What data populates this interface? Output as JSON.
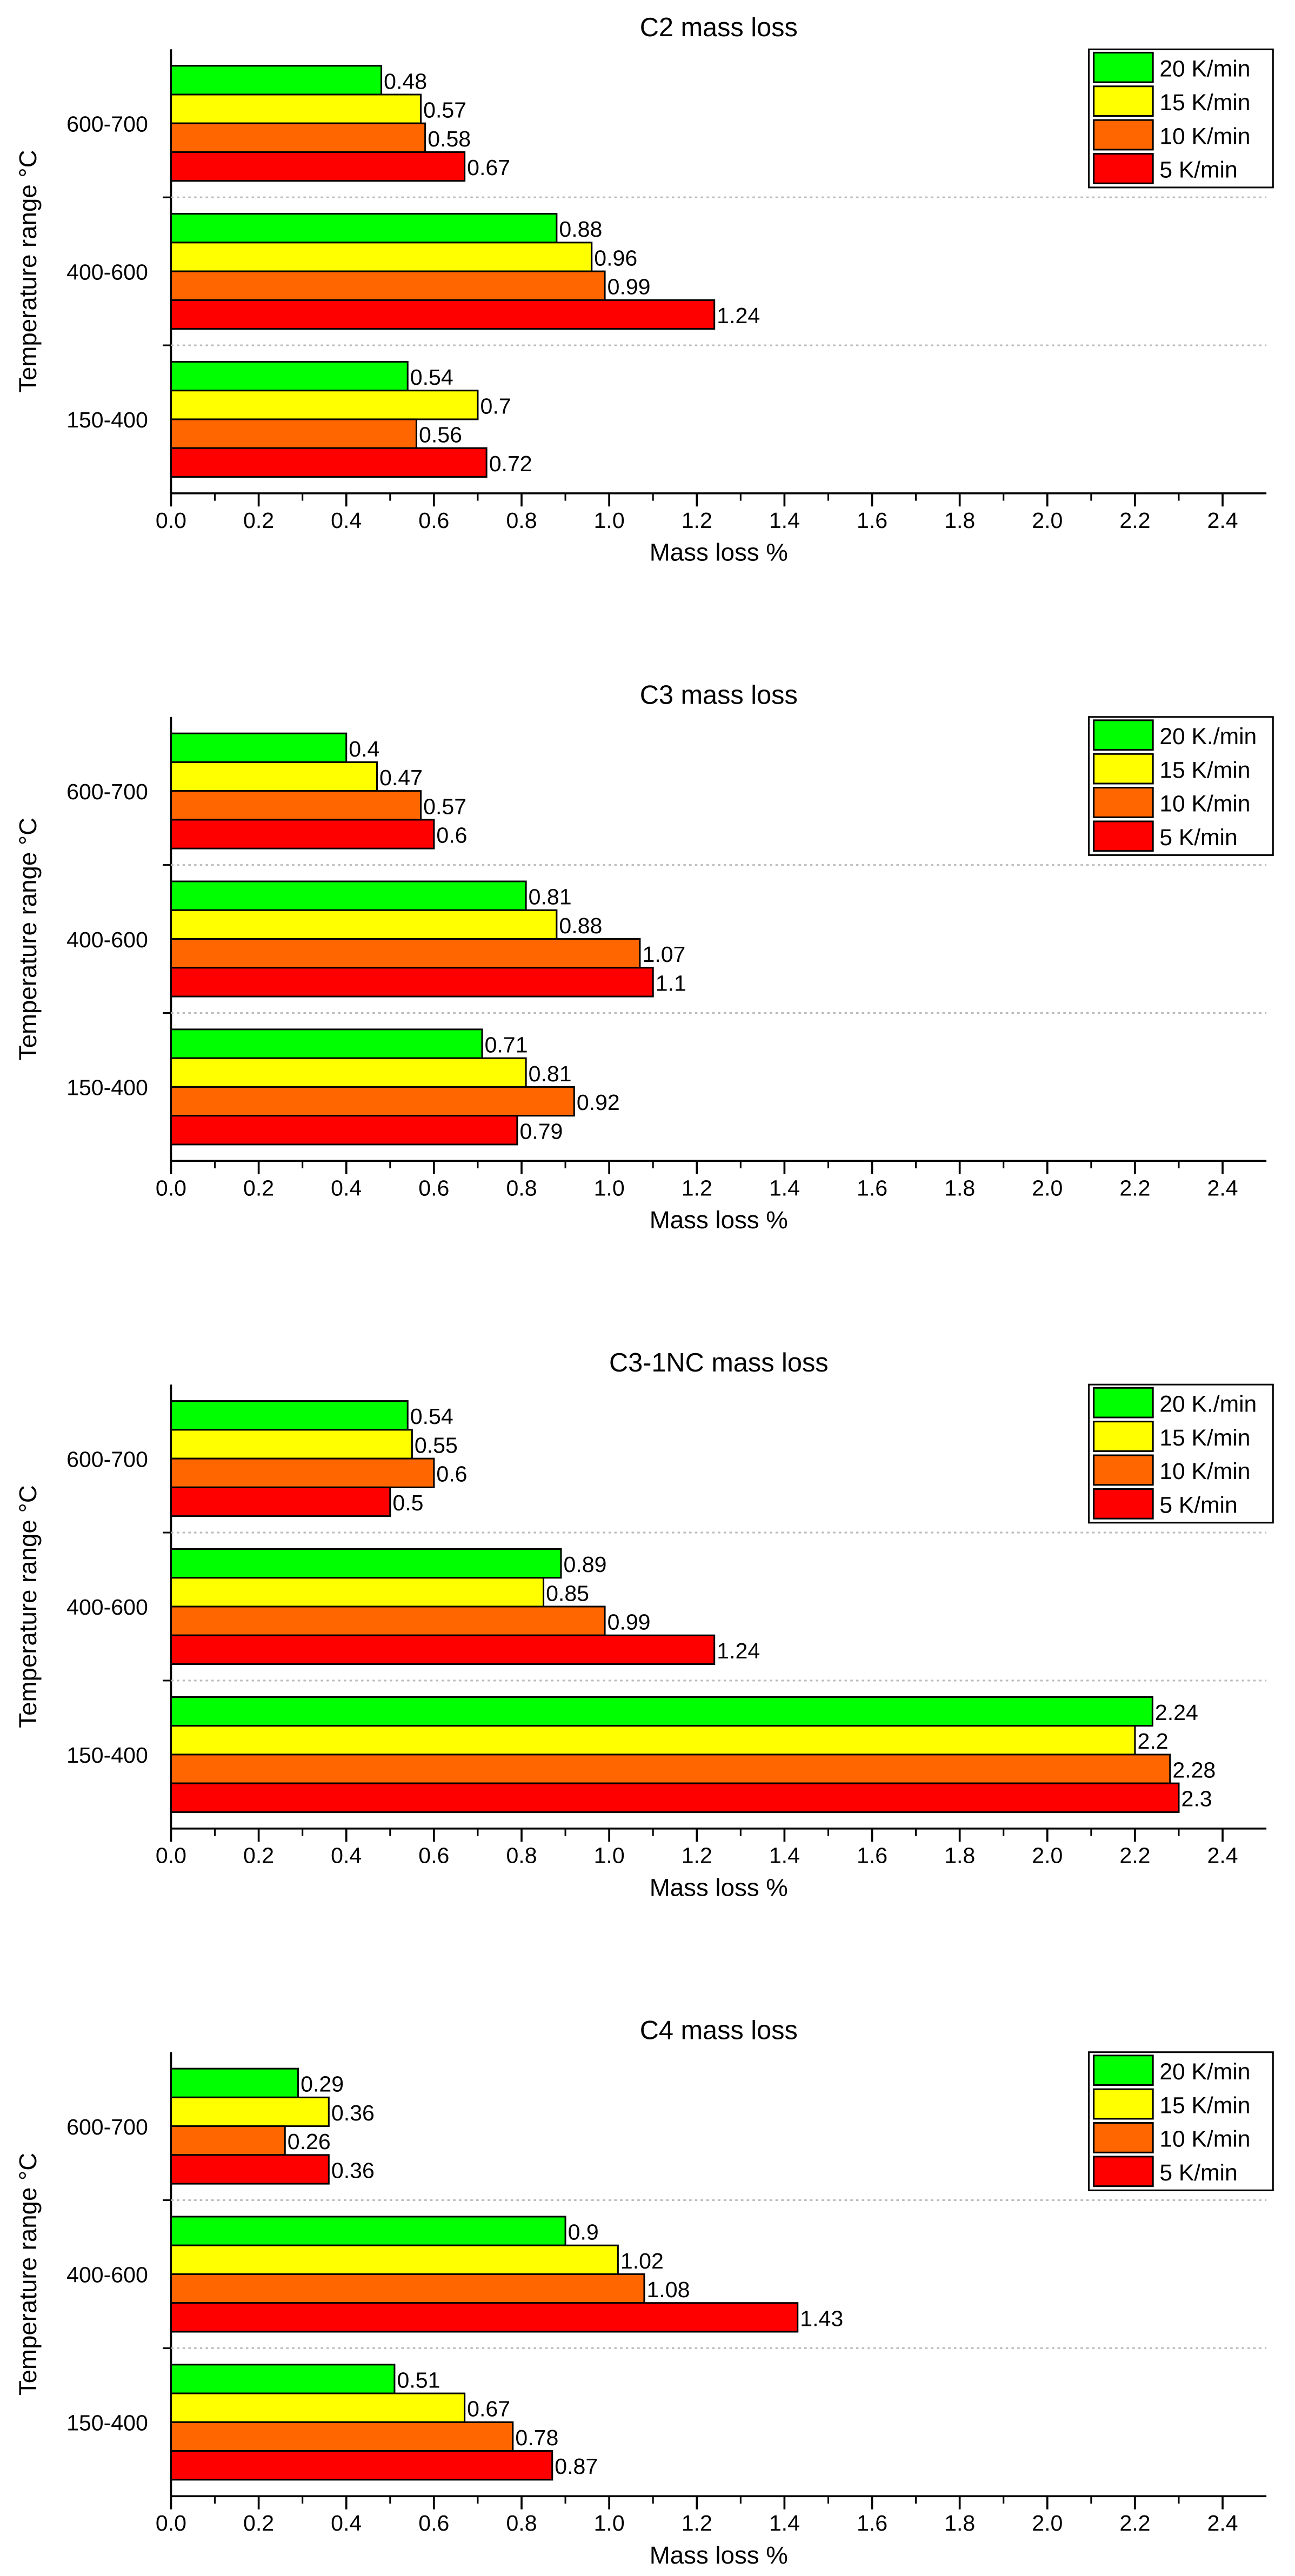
{
  "chart_data": [
    {
      "type": "bar",
      "orientation": "horizontal",
      "title": "C2 mass loss",
      "xlabel": "Mass loss %",
      "ylabel": "Temperature range °C",
      "xlim": [
        0,
        2.5
      ],
      "xticks": [
        "0.0",
        "0.2",
        "0.4",
        "0.6",
        "0.8",
        "1.0",
        "1.2",
        "1.4",
        "1.6",
        "1.8",
        "2.0",
        "2.2",
        "2.4"
      ],
      "categories": [
        "600-700",
        "400-600",
        "150-400"
      ],
      "legend_position": "top-right",
      "series": [
        {
          "name": "20 K/min",
          "color": "#00ff00",
          "values": [
            0.48,
            0.88,
            0.54
          ]
        },
        {
          "name": "15 K/min",
          "color": "#ffff00",
          "values": [
            0.57,
            0.96,
            0.7
          ]
        },
        {
          "name": "10 K/min",
          "color": "#ff6600",
          "values": [
            0.58,
            0.99,
            0.56
          ]
        },
        {
          "name": "5 K/min",
          "color": "#ff0000",
          "values": [
            0.67,
            1.24,
            0.72
          ]
        }
      ]
    },
    {
      "type": "bar",
      "orientation": "horizontal",
      "title": "C3 mass loss",
      "xlabel": "Mass loss %",
      "ylabel": "Temperature range °C",
      "xlim": [
        0,
        2.5
      ],
      "xticks": [
        "0.0",
        "0.2",
        "0.4",
        "0.6",
        "0.8",
        "1.0",
        "1.2",
        "1.4",
        "1.6",
        "1.8",
        "2.0",
        "2.2",
        "2.4"
      ],
      "categories": [
        "600-700",
        "400-600",
        "150-400"
      ],
      "legend_position": "top-right",
      "series": [
        {
          "name": "20 K./min",
          "color": "#00ff00",
          "values": [
            0.4,
            0.81,
            0.71
          ]
        },
        {
          "name": "15 K/min",
          "color": "#ffff00",
          "values": [
            0.47,
            0.88,
            0.81
          ]
        },
        {
          "name": "10 K/min",
          "color": "#ff6600",
          "values": [
            0.57,
            1.07,
            0.92
          ]
        },
        {
          "name": "5 K/min",
          "color": "#ff0000",
          "values": [
            0.6,
            1.1,
            0.79
          ]
        }
      ]
    },
    {
      "type": "bar",
      "orientation": "horizontal",
      "title": "C3-1NC mass loss",
      "xlabel": "Mass loss %",
      "ylabel": "Temperature range °C",
      "xlim": [
        0,
        2.5
      ],
      "xticks": [
        "0.0",
        "0.2",
        "0.4",
        "0.6",
        "0.8",
        "1.0",
        "1.2",
        "1.4",
        "1.6",
        "1.8",
        "2.0",
        "2.2",
        "2.4"
      ],
      "categories": [
        "600-700",
        "400-600",
        "150-400"
      ],
      "legend_position": "top-right",
      "series": [
        {
          "name": "20 K./min",
          "color": "#00ff00",
          "values": [
            0.54,
            0.89,
            2.24
          ]
        },
        {
          "name": "15 K/min",
          "color": "#ffff00",
          "values": [
            0.55,
            0.85,
            2.2
          ]
        },
        {
          "name": "10 K/min",
          "color": "#ff6600",
          "values": [
            0.6,
            0.99,
            2.28
          ]
        },
        {
          "name": "5 K/min",
          "color": "#ff0000",
          "values": [
            0.5,
            1.24,
            2.3
          ]
        }
      ]
    },
    {
      "type": "bar",
      "orientation": "horizontal",
      "title": "C4 mass loss",
      "xlabel": "Mass loss %",
      "ylabel": "Temperature range °C",
      "xlim": [
        0,
        2.5
      ],
      "xticks": [
        "0.0",
        "0.2",
        "0.4",
        "0.6",
        "0.8",
        "1.0",
        "1.2",
        "1.4",
        "1.6",
        "1.8",
        "2.0",
        "2.2",
        "2.4"
      ],
      "categories": [
        "600-700",
        "400-600",
        "150-400"
      ],
      "legend_position": "top-right",
      "series": [
        {
          "name": "20 K/min",
          "color": "#00ff00",
          "values": [
            0.29,
            0.9,
            0.51
          ]
        },
        {
          "name": "15 K/min",
          "color": "#ffff00",
          "values": [
            0.36,
            1.02,
            0.67
          ]
        },
        {
          "name": "10 K/min",
          "color": "#ff6600",
          "values": [
            0.26,
            1.08,
            0.78
          ]
        },
        {
          "name": "5 K/min",
          "color": "#ff0000",
          "values": [
            0.36,
            1.43,
            0.87
          ]
        }
      ]
    }
  ]
}
